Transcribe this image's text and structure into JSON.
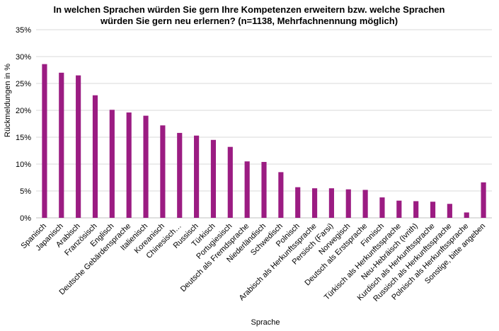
{
  "chart_data": {
    "type": "bar",
    "title_lines": [
      "In welchen Sprachen würden Sie gern Ihre Kompetenzen erweitern bzw. welche Sprachen",
      "würden Sie gern neu erlernen? (n=1138, Mehrfachnennung möglich)"
    ],
    "xlabel": "Sprache",
    "ylabel": "Rückmeldungen in %",
    "ylim": [
      0,
      35
    ],
    "yticks": [
      "0%",
      "5%",
      "10%",
      "15%",
      "20%",
      "25%",
      "30%",
      "35%"
    ],
    "grid": true,
    "bar_color": "#9b1c82",
    "categories": [
      "Spanisch",
      "Japanisch",
      "Arabisch",
      "Französisch",
      "Englisch",
      "Deutsche Gebärdensprache",
      "Italienisch",
      "Koreanisch",
      "Chinesisch…",
      "Russisch",
      "Türkisch",
      "Portugiesisch",
      "Deutsch als Fremdsprache",
      "Niederländisch",
      "Schwedisch",
      "Polnisch",
      "Arabisch als Herkunftssprache",
      "Persisch (Farsi)",
      "Norwegisch",
      "Deutsch als Erstsprache",
      "Finnisch",
      "Türkisch als Herkunftssprache",
      "Neu-Hebräisch (Ivrith)",
      "Kurdisch als Herkunftssprache",
      "Russisch als Herkunftssprache",
      "Polnisch als Herkunftssprache",
      "Sonstige, bitte angeben"
    ],
    "values": [
      28.6,
      27.0,
      26.5,
      22.8,
      20.1,
      19.6,
      19.0,
      17.2,
      15.8,
      15.3,
      14.5,
      13.2,
      10.5,
      10.4,
      8.5,
      5.7,
      5.5,
      5.5,
      5.3,
      5.2,
      3.8,
      3.2,
      3.1,
      3.0,
      2.6,
      1.0,
      6.6
    ]
  }
}
